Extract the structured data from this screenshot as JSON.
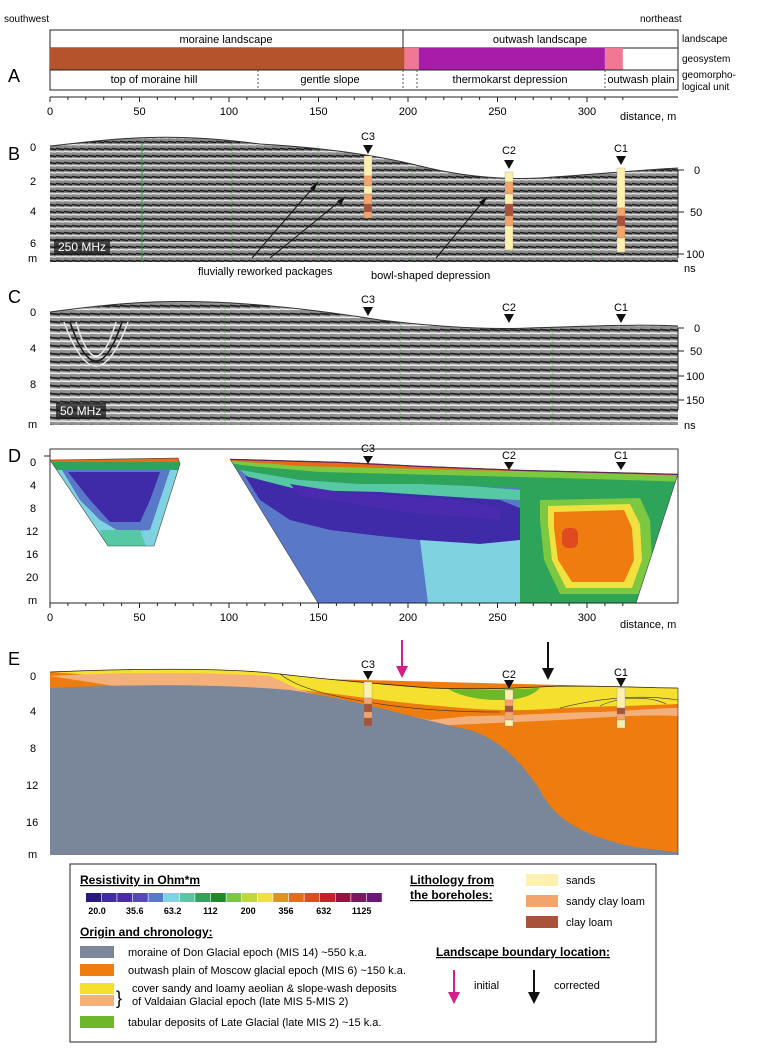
{
  "compass": {
    "left": "southwest",
    "right": "northeast"
  },
  "panel_letters": [
    "A",
    "B",
    "C",
    "D",
    "E"
  ],
  "panelA": {
    "row_labels": [
      "landscape",
      "geosystem",
      "geomorpho-",
      "logical unit"
    ],
    "landscapes": [
      {
        "label": "moraine landscape",
        "start": 0,
        "end": 198
      },
      {
        "label": "outwash landscape",
        "start": 198,
        "end": 320
      }
    ],
    "geosystems": [
      {
        "start": 0,
        "end": 198,
        "color": "#b5542c"
      },
      {
        "start": 198,
        "end": 206,
        "color": "#f07894"
      },
      {
        "start": 206,
        "end": 310,
        "color": "#a71ca8"
      },
      {
        "start": 310,
        "end": 320,
        "color": "#f07894"
      }
    ],
    "geomorph_units": [
      {
        "label": "top of moraine hill",
        "start": 0,
        "end": 118
      },
      {
        "label": "gentle slope",
        "start": 118,
        "end": 198
      },
      {
        "label": "thermokarst depression",
        "start": 198,
        "end": 310
      },
      {
        "label": "outwash plain",
        "start": 310,
        "end": 320
      }
    ]
  },
  "distance_axis": {
    "ticks": [
      "0",
      "50",
      "100",
      "150",
      "200",
      "250",
      "300"
    ],
    "label": "distance, m"
  },
  "panelB": {
    "depth_ticks": [
      "0",
      "2",
      "4",
      "6"
    ],
    "depth_unit": "m",
    "time_ticks": [
      "0",
      "50",
      "100"
    ],
    "time_unit": "ns",
    "freq_label": "250 MHz",
    "boreholes": [
      "C3",
      "C2",
      "C1"
    ],
    "annotations": [
      "fluvially reworked packages",
      "bowl-shaped depression"
    ]
  },
  "panelC": {
    "depth_ticks": [
      "0",
      "4",
      "8"
    ],
    "depth_unit": "m",
    "time_ticks": [
      "0",
      "50",
      "100",
      "150"
    ],
    "time_unit": "ns",
    "freq_label": "50 MHz",
    "boreholes": [
      "C3",
      "C2",
      "C1"
    ]
  },
  "panelD": {
    "depth_ticks": [
      "0",
      "4",
      "8",
      "12",
      "16",
      "20"
    ],
    "depth_unit": "m",
    "boreholes": [
      "C3",
      "C2",
      "C1"
    ]
  },
  "panelE": {
    "depth_ticks": [
      "0",
      "4",
      "8",
      "12",
      "16"
    ],
    "depth_unit": "m",
    "boreholes": [
      "C3",
      "C2",
      "C1"
    ]
  },
  "legend": {
    "resistivity_title": "Resistivity in Ohm*m",
    "resistivity_colors": [
      "#2a1a80",
      "#3f2aa8",
      "#4a2bb0",
      "#5548b8",
      "#5a78c8",
      "#7fd3e0",
      "#56c9a4",
      "#2ea35a",
      "#1f8a2a",
      "#7cc840",
      "#c2d638",
      "#f0e040",
      "#d8961a",
      "#e86c14",
      "#e04a20",
      "#c8202a",
      "#9a1040",
      "#7a1860",
      "#6a1878"
    ],
    "resistivity_values": [
      "20.0",
      "35.6",
      "63.2",
      "112",
      "200",
      "356",
      "632",
      "1125"
    ],
    "lithology_title_1": "Lithology from",
    "lithology_title_2": "the boreholes:",
    "lithology": [
      {
        "label": "sands",
        "color": "#fff0b0"
      },
      {
        "label": "sandy clay loam",
        "color": "#f2a46a"
      },
      {
        "label": "clay loam",
        "color": "#a8523a"
      }
    ],
    "origin_title": "Origin and chronology:",
    "origin": [
      {
        "label": "moraine of Don Glacial epoch (MIS 14) ~550 k.a.",
        "color": "#7a869a"
      },
      {
        "label": "outwash plain of Moscow glacial epoch (MIS 6) ~150 k.a.",
        "color": "#ee7c0e"
      },
      {
        "label": "cover sandy and loamy aeolian & slope-wash deposits",
        "label2": "of Valdaian Glacial epoch (late MIS 5-MIS 2)",
        "color": "#f5e030",
        "color2": "#f4b07a"
      },
      {
        "label": "tabular deposits of Late Glacial (late MIS 2) ~15 k.a.",
        "color": "#6cb828"
      }
    ],
    "boundary_title": "Landscape boundary location:",
    "boundary": [
      {
        "label": "initial",
        "color": "#d61f8a"
      },
      {
        "label": "corrected",
        "color": "#111111"
      }
    ]
  }
}
